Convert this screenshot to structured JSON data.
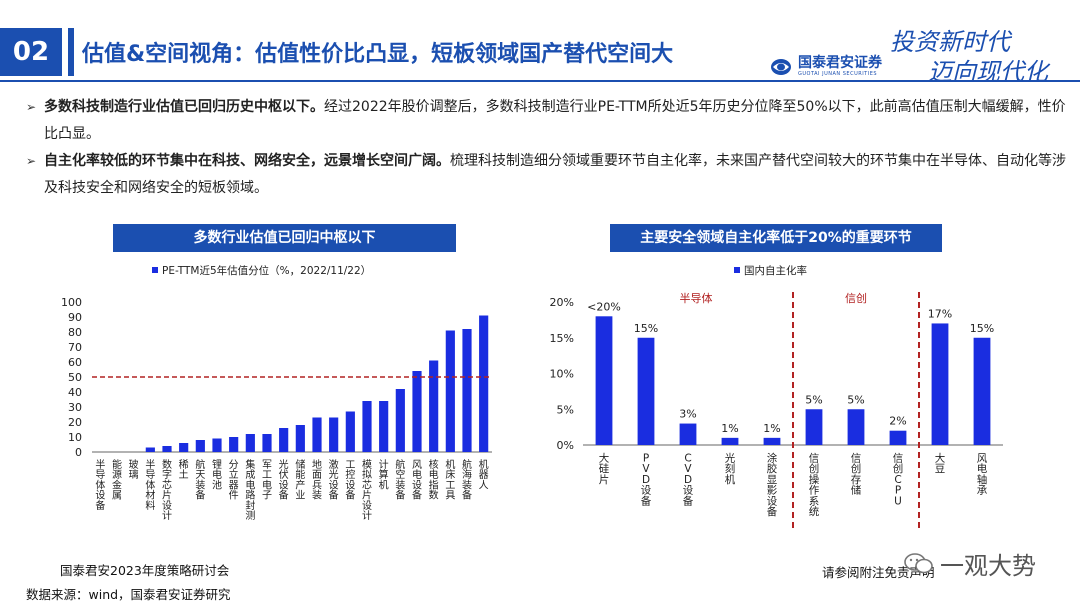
{
  "header": {
    "section_number": "02",
    "title": "估值&空间视角：估值性价比凸显，短板领域国产替代空间大",
    "logo_cn": "国泰君安证券",
    "logo_en": "GUOTAI JUNAN SECURITIES",
    "slogan_line1": "投资新时代",
    "slogan_line2": "迈向现代化"
  },
  "bullets": [
    {
      "bold": "多数科技制造行业估值已回归历史中枢以下。",
      "text": "经过2022年股价调整后，多数科技制造行业PE-TTM所处近5年历史分位降至50%以下，此前高估值压制大幅缓解，性价比凸显。"
    },
    {
      "bold": "自主化率较低的环节集中在科技、网络安全，远景增长空间广阔。",
      "text": "梳理科技制造细分领域重要环节自主化率，未来国产替代空间较大的环节集中在半导体、自动化等涉及科技安全和网络安全的短板领域。"
    }
  ],
  "footer": {
    "event": "国泰君安2023年度策略研讨会",
    "source": "数据来源：wind，国泰君安证券研究",
    "disclaimer": "请参阅附注免责声明",
    "watermark": "一观大势"
  },
  "colors": {
    "brand": "#1b4fb0",
    "bar": "#1a2de0",
    "ref_line": "#b22222"
  },
  "chart_data": [
    {
      "type": "bar",
      "title": "多数行业估值已回归中枢以下",
      "legend": "PE-TTM近5年估值分位（%，2022/11/22）",
      "categories": [
        "半导体设备",
        "能源金属",
        "玻璃",
        "半导体材料",
        "数字芯片设计",
        "稀土",
        "航天装备",
        "锂电池",
        "分立器件",
        "集成电路封测",
        "军工电子",
        "光伏设备",
        "储能产业",
        "地面兵装",
        "激光设备",
        "工控设备",
        "模拟芯片设计",
        "计算机",
        "航空装备",
        "风电设备",
        "核电指数",
        "机床工具",
        "航海装备",
        "机器人"
      ],
      "values": [
        0,
        0,
        0,
        3,
        4,
        6,
        8,
        9,
        10,
        12,
        12,
        16,
        18,
        23,
        23,
        27,
        34,
        34,
        42,
        54,
        61,
        81,
        82,
        91
      ],
      "ylim": [
        0,
        100
      ],
      "yticks": [
        0,
        10,
        20,
        30,
        40,
        50,
        60,
        70,
        80,
        90,
        100
      ],
      "reference_line": 50,
      "grid": false
    },
    {
      "type": "bar",
      "title": "主要安全领域自主化率低于20%的重要环节",
      "legend": "国内自主化率",
      "categories": [
        "大硅片",
        "PVD设备",
        "CVD设备",
        "光刻机",
        "涂胶显影设备",
        "信创操作系统",
        "信创存储",
        "信创CPU",
        "大豆",
        "风电轴承"
      ],
      "values": [
        18,
        15,
        3,
        1,
        1,
        5,
        5,
        2,
        17,
        15
      ],
      "data_labels": [
        "<20%",
        "15%",
        "3%",
        "1%",
        "1%",
        "5%",
        "5%",
        "2%",
        "17%",
        "15%"
      ],
      "ylim": [
        0,
        20
      ],
      "yticks": [
        "0%",
        "5%",
        "10%",
        "15%",
        "20%"
      ],
      "group_labels": [
        {
          "label": "半导体",
          "from": 0,
          "to": 4
        },
        {
          "label": "信创",
          "from": 5,
          "to": 7
        }
      ],
      "grid": false
    }
  ]
}
